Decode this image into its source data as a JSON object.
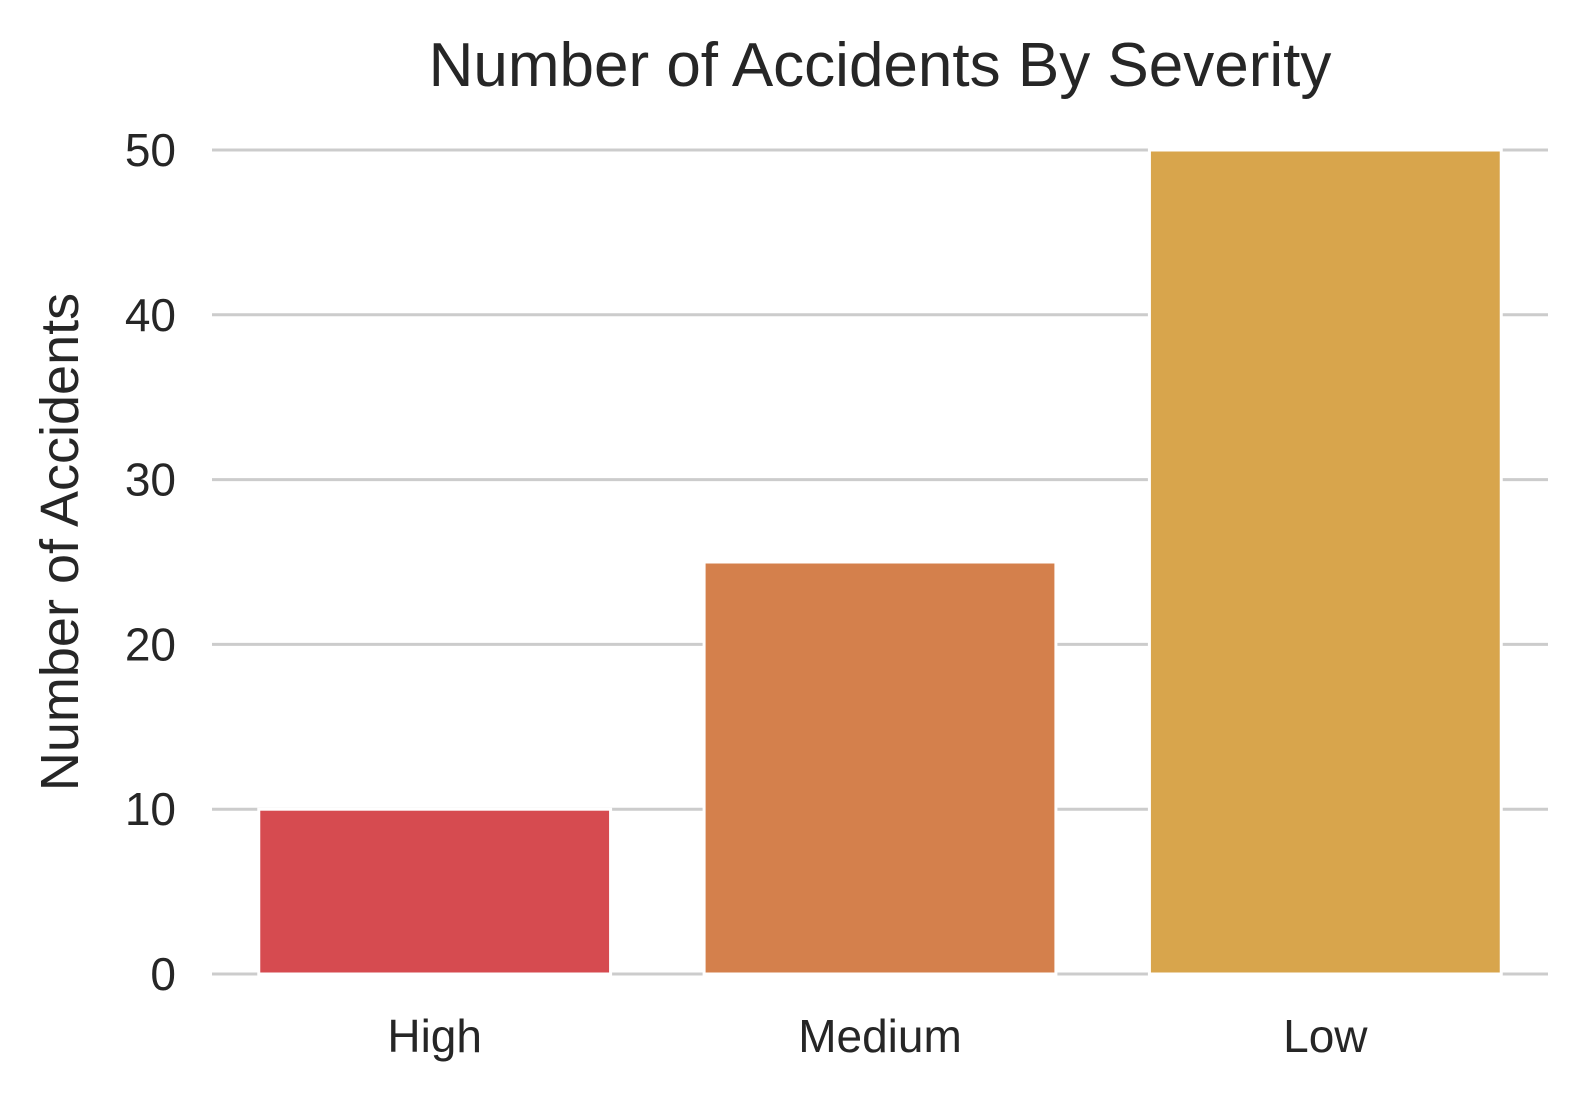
{
  "chart_data": {
    "type": "bar",
    "title": "Number of Accidents By Severity",
    "xlabel": "",
    "ylabel": "Number of Accidents",
    "categories": [
      "High",
      "Medium",
      "Low"
    ],
    "values": [
      10,
      25,
      50
    ],
    "colors": [
      "#d64b50",
      "#d4804c",
      "#d8a54c"
    ],
    "ylim": [
      0,
      50
    ],
    "yticks": [
      0,
      10,
      20,
      30,
      40,
      50
    ],
    "grid": "horizontal",
    "grid_color": "#cccccc",
    "text_color": "#262626"
  }
}
